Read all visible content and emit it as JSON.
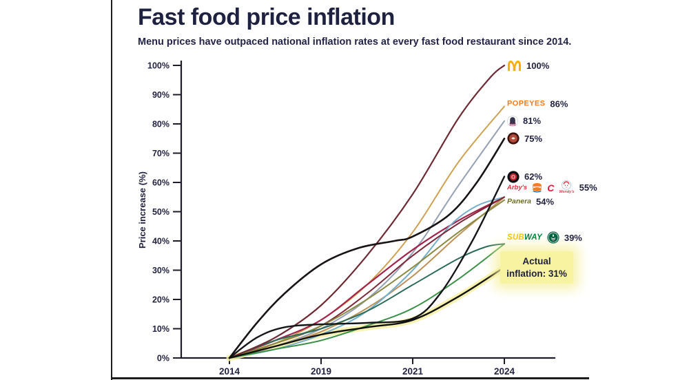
{
  "header": {
    "title": "Fast food price inflation",
    "subtitle": "Menu prices have outpaced national inflation rates at every fast food restaurant since 2014."
  },
  "chart_data": {
    "type": "line",
    "title": "Fast food price inflation",
    "xlabel": "",
    "ylabel": "Price increase (%)",
    "x_ticks": [
      "2014",
      "2019",
      "2021",
      "2024"
    ],
    "y_ticks": [
      "0%",
      "10%",
      "20%",
      "30%",
      "40%",
      "50%",
      "60%",
      "70%",
      "80%",
      "90%",
      "100%"
    ],
    "ylim": [
      0,
      100
    ],
    "grid": false,
    "legend_position": "right",
    "x_unit": "tick-index (ticks evenly spaced: 2014, 2019, 2021, 2024)",
    "series": [
      {
        "name": "Popeyes",
        "end_value": 86,
        "color": "#cfa04f",
        "width": 2,
        "points": [
          [
            0,
            0
          ],
          [
            0.5,
            5
          ],
          [
            1,
            13
          ],
          [
            1.5,
            25
          ],
          [
            2,
            43
          ],
          [
            2.5,
            67
          ],
          [
            3,
            86
          ]
        ]
      },
      {
        "name": "Taco Bell",
        "end_value": 81,
        "color": "#94a0b4",
        "width": 2,
        "points": [
          [
            0,
            0
          ],
          [
            0.5,
            4
          ],
          [
            1,
            10
          ],
          [
            1.5,
            20
          ],
          [
            2,
            36
          ],
          [
            2.5,
            59
          ],
          [
            3,
            81
          ]
        ]
      },
      {
        "name": "Arby's",
        "end_value": 55,
        "color": "#a3244b",
        "width": 2.2,
        "points": [
          [
            0,
            0
          ],
          [
            0.5,
            6
          ],
          [
            1,
            13
          ],
          [
            1.5,
            25
          ],
          [
            2,
            37
          ],
          [
            2.5,
            47
          ],
          [
            3,
            55
          ]
        ]
      },
      {
        "name": "Burger King",
        "end_value": 55,
        "color": "#bd8f55",
        "width": 2,
        "points": [
          [
            0,
            0
          ],
          [
            0.5,
            4
          ],
          [
            1,
            9
          ],
          [
            1.5,
            17
          ],
          [
            2,
            28
          ],
          [
            2.5,
            42
          ],
          [
            3,
            55
          ]
        ]
      },
      {
        "name": "Chick-fil-A",
        "end_value": 55,
        "color": "#74aec9",
        "width": 2,
        "points": [
          [
            0,
            0
          ],
          [
            0.5,
            3
          ],
          [
            1,
            8
          ],
          [
            1.5,
            16
          ],
          [
            2,
            30
          ],
          [
            2.4,
            45
          ],
          [
            2.7,
            52
          ],
          [
            3,
            55
          ]
        ]
      },
      {
        "name": "Wendy's",
        "end_value": 55,
        "color": "#7e2736",
        "width": 2,
        "points": [
          [
            0,
            0
          ],
          [
            0.5,
            5
          ],
          [
            1,
            11
          ],
          [
            1.5,
            22
          ],
          [
            2,
            35
          ],
          [
            2.5,
            46
          ],
          [
            3,
            55
          ]
        ]
      },
      {
        "name": "Panera",
        "end_value": 54,
        "color": "#8b8a42",
        "width": 2,
        "points": [
          [
            0,
            0
          ],
          [
            0.5,
            5
          ],
          [
            1,
            11
          ],
          [
            1.5,
            20
          ],
          [
            2,
            31
          ],
          [
            2.5,
            43
          ],
          [
            3,
            54
          ]
        ]
      },
      {
        "name": "Subway",
        "end_value": 39,
        "color": "#3d9049",
        "width": 2,
        "points": [
          [
            0,
            0
          ],
          [
            0.5,
            3
          ],
          [
            1,
            6
          ],
          [
            1.5,
            11
          ],
          [
            2,
            17
          ],
          [
            2.5,
            27
          ],
          [
            3,
            39
          ]
        ]
      },
      {
        "name": "Starbucks",
        "end_value": 39,
        "color": "#2a6b58",
        "width": 2,
        "points": [
          [
            0,
            0
          ],
          [
            0.5,
            6
          ],
          [
            1,
            10
          ],
          [
            1.5,
            16
          ],
          [
            2,
            25
          ],
          [
            2.5,
            34
          ],
          [
            2.8,
            38
          ],
          [
            3,
            39
          ]
        ]
      },
      {
        "name": "McDonald's",
        "end_value": 100,
        "color": "#6e2a34",
        "width": 2.2,
        "points": [
          [
            0,
            0
          ],
          [
            0.5,
            7
          ],
          [
            1,
            18
          ],
          [
            1.5,
            35
          ],
          [
            2,
            56
          ],
          [
            2.5,
            82
          ],
          [
            2.85,
            96
          ],
          [
            3,
            100
          ]
        ]
      },
      {
        "name": "Chipotle",
        "end_value": 75,
        "color": "#181414",
        "width": 2.6,
        "points": [
          [
            0,
            0
          ],
          [
            0.3,
            12
          ],
          [
            0.6,
            22
          ],
          [
            1,
            32
          ],
          [
            1.4,
            37.5
          ],
          [
            1.8,
            40
          ],
          [
            2,
            41.5
          ],
          [
            2.4,
            49
          ],
          [
            2.7,
            60
          ],
          [
            3,
            75
          ]
        ]
      },
      {
        "name": "Jimmy John's",
        "end_value": 62,
        "color": "#141619",
        "width": 2.4,
        "points": [
          [
            0,
            0
          ],
          [
            0.3,
            7
          ],
          [
            0.6,
            10.5
          ],
          [
            1,
            11.5
          ],
          [
            1.5,
            12
          ],
          [
            2,
            13.5
          ],
          [
            2.3,
            22
          ],
          [
            2.65,
            40
          ],
          [
            3,
            62
          ]
        ]
      },
      {
        "name": "Actual inflation",
        "end_value": 31,
        "color": "#101010",
        "width": 2.4,
        "highlight": true,
        "highlight_color": "#f6f0a2",
        "points": [
          [
            0,
            0
          ],
          [
            0.5,
            4
          ],
          [
            1,
            8
          ],
          [
            1.5,
            10.5
          ],
          [
            2,
            13
          ],
          [
            2.5,
            21
          ],
          [
            3,
            31
          ]
        ]
      }
    ],
    "label_rows": [
      {
        "id": "mcdonalds",
        "value": 100,
        "pct": "100%",
        "logos": [
          "mcdonalds"
        ]
      },
      {
        "id": "popeyes",
        "value": 86,
        "pct": "86%",
        "logos": [
          "popeyes"
        ]
      },
      {
        "id": "tacobell",
        "value": 81,
        "pct": "81%",
        "logos": [
          "tacobell"
        ]
      },
      {
        "id": "chipotle",
        "value": 75,
        "pct": "75%",
        "logos": [
          "chipotle"
        ]
      },
      {
        "id": "jimmyjohns",
        "value": 62,
        "pct": "62%",
        "logos": [
          "jimmyjohns"
        ]
      },
      {
        "id": "55-group",
        "value": 55,
        "pct": "55%",
        "logos": [
          "arbys",
          "burgerking",
          "chickfila",
          "wendys"
        ]
      },
      {
        "id": "panera",
        "value": 54,
        "pct": "54%",
        "logos": [
          "panera"
        ]
      },
      {
        "id": "subway-starbucks",
        "value": 39,
        "pct": "39%",
        "logos": [
          "subway",
          "starbucks"
        ]
      }
    ],
    "annotation": {
      "line1": "Actual",
      "line2": "inflation: 31%",
      "value": 31
    },
    "logo_words": {
      "popeyes": "POPEYES",
      "subway_sub": "SUB",
      "subway_way": "WAY",
      "arbys": "Arby's",
      "panera": "Panera",
      "chickfila": "C",
      "wendys": "Wendy's"
    }
  }
}
